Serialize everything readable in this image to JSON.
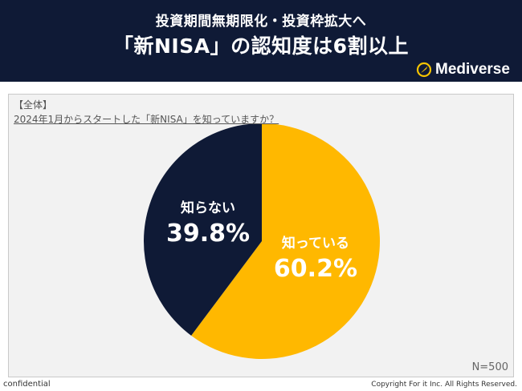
{
  "header": {
    "line1": "投資期間無期限化・投資枠拡大へ",
    "line2": "「新NISA」の認知度は6割以上"
  },
  "logo": {
    "icon": "compass-logo-icon",
    "text": "Mediverse",
    "accent": "#f5c400"
  },
  "panel": {
    "tag": "【全体】",
    "question": "2024年1月からスタートした「新NISA」を知っていますか？",
    "sample": "N=500"
  },
  "chart_data": {
    "type": "pie",
    "slices": [
      {
        "label": "知っている",
        "value": 60.2,
        "display": "60.2%",
        "color": "#ffb800",
        "text_color": "#ffffff"
      },
      {
        "label": "知らない",
        "value": 39.8,
        "display": "39.8%",
        "color": "#0f1a36",
        "text_color": "#ffffff"
      }
    ],
    "start": "12 o'clock",
    "direction": "clockwise"
  },
  "footer": {
    "left": "confidential",
    "right": "Copyright For it Inc. All Rights Reserved."
  }
}
